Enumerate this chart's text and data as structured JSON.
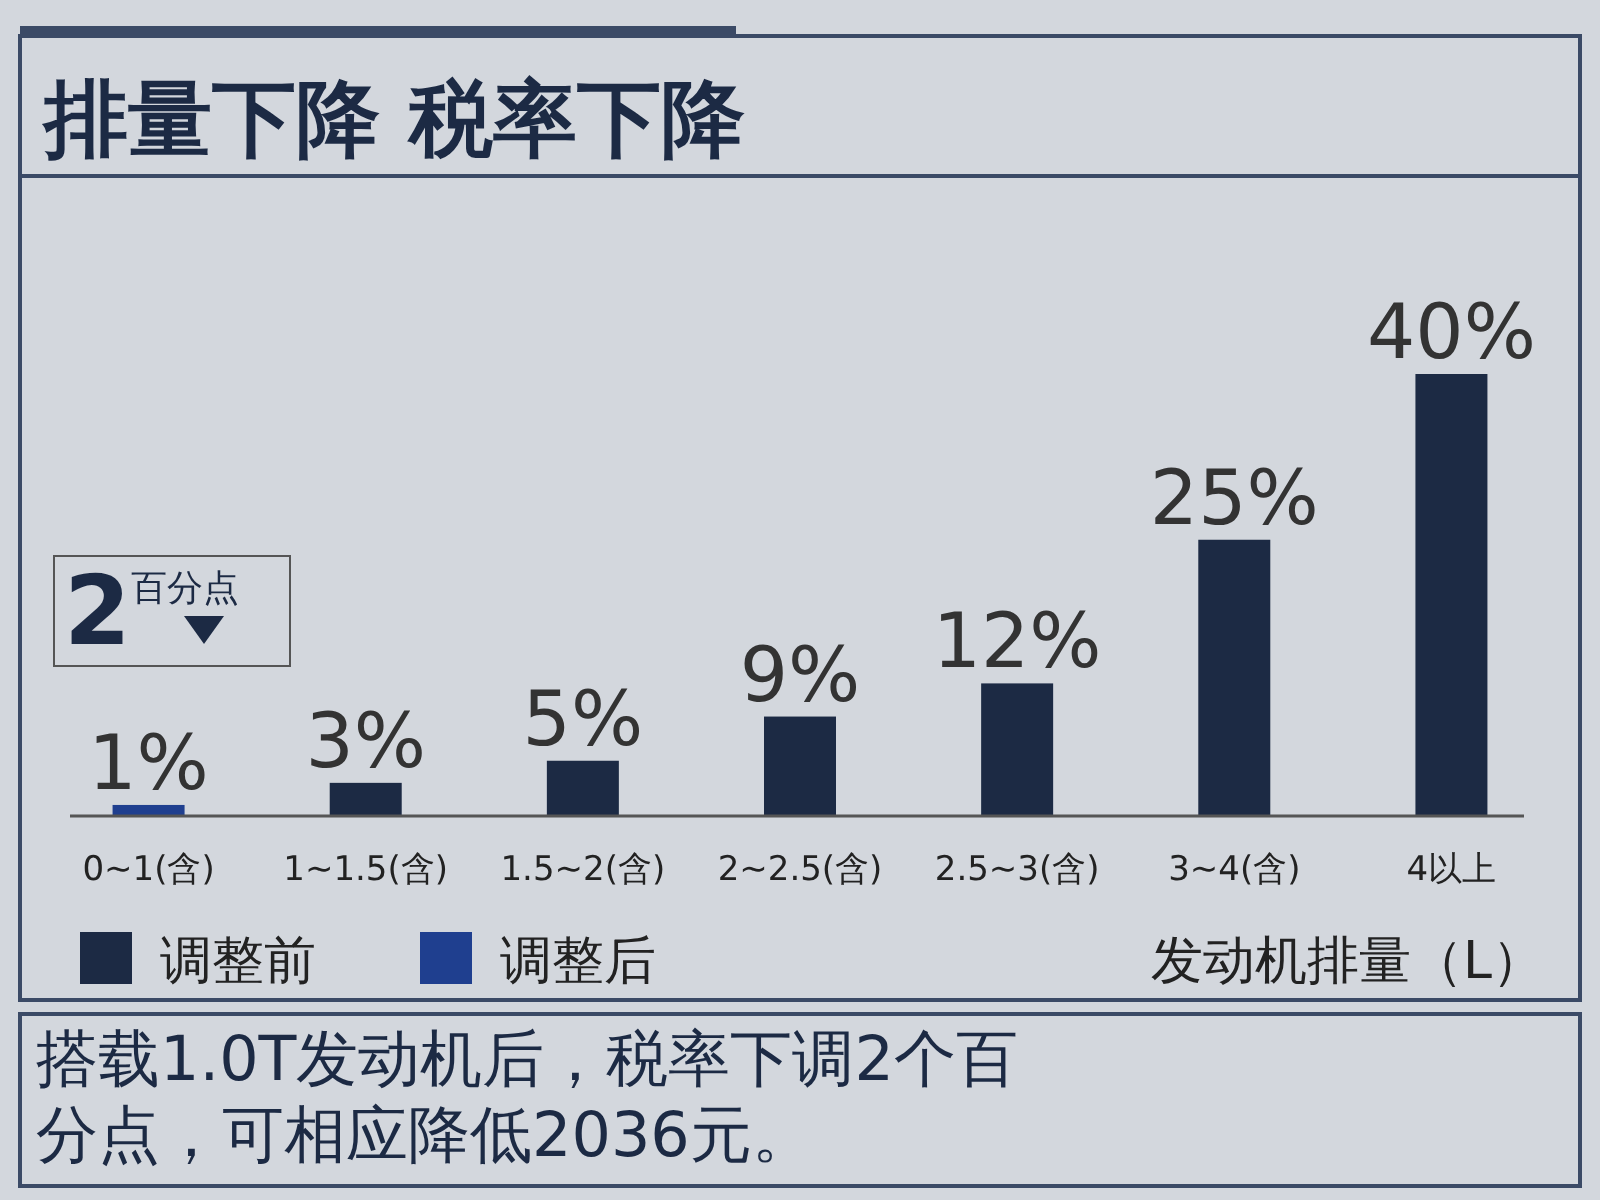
{
  "chart_data": {
    "type": "bar",
    "title": "排量下降 税率下降",
    "xlabel": "发动机排量（L）",
    "categories": [
      "0~1(含)",
      "1~1.5(含)",
      "1.5~2(含)",
      "2~2.5(含)",
      "2.5~3(含)",
      "3~4(含)",
      "4以上"
    ],
    "series": [
      {
        "name": "调整前",
        "color": "#1c2a44",
        "values": [
          null,
          3,
          5,
          9,
          12,
          25,
          40
        ],
        "value_labels": [
          null,
          "3%",
          "5%",
          "9%",
          "12%",
          "25%",
          "40%"
        ]
      },
      {
        "name": "调整后",
        "color": "#1f3f8f",
        "values": [
          1,
          null,
          null,
          null,
          null,
          null,
          null
        ],
        "value_labels": [
          "1%",
          null,
          null,
          null,
          null,
          null,
          null
        ]
      }
    ],
    "legend": "bottom left",
    "annotations": [
      "2百分点",
      "搭载1.0T发动机后，税率下调2个百分点，可相应降低2036元。"
    ]
  }
}
